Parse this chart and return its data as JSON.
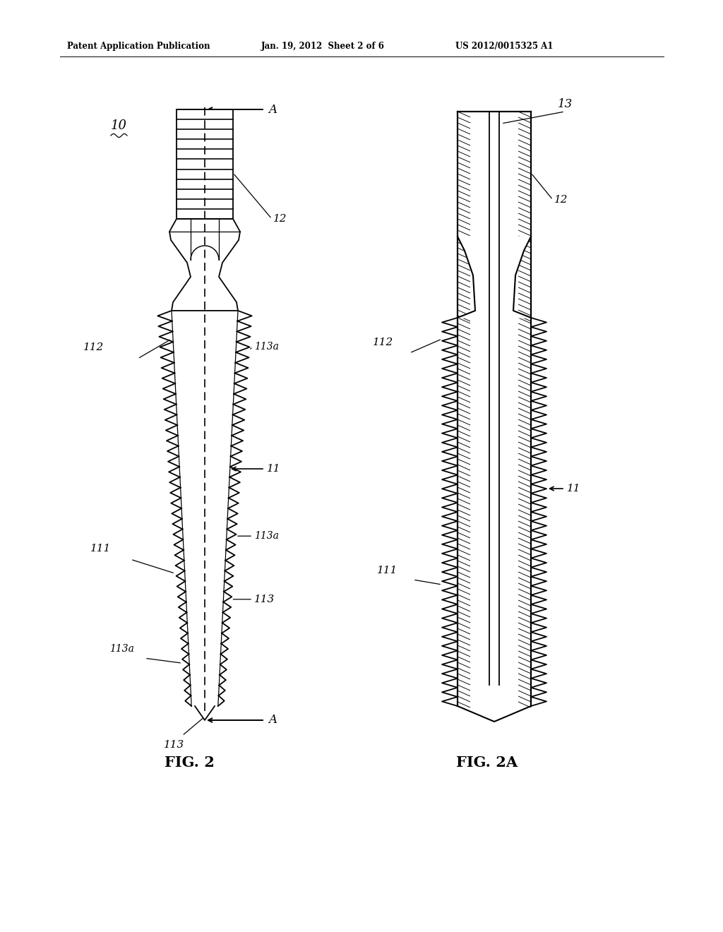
{
  "bg_color": "#ffffff",
  "lc": "#000000",
  "header_left": "Patent Application Publication",
  "header_mid": "Jan. 19, 2012  Sheet 2 of 6",
  "header_right": "US 2012/0015325 A1",
  "fig2_label": "FIG. 2",
  "fig2a_label": "FIG. 2A",
  "lbl_10": "10",
  "lbl_11": "11",
  "lbl_12": "12",
  "lbl_13": "13",
  "lbl_111": "111",
  "lbl_112": "112",
  "lbl_113": "113",
  "lbl_113a": "113a",
  "lbl_A": "A"
}
